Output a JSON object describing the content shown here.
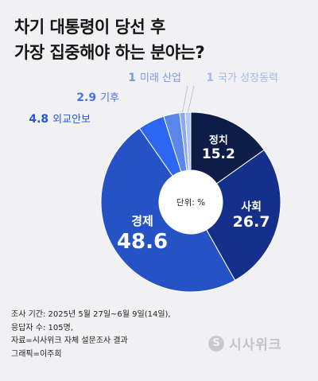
{
  "title_lines": [
    "차기 대통령이 당선 후",
    "가장 집중해야 하는 분야는?"
  ],
  "unit_label": "단위: %",
  "footer_lines": [
    "조사 기간: 2025년 5월 27일~6월 9일(14일),",
    "응답자 수: 105명,",
    "자료=시사위크 자체 설문조사 결과",
    "그래픽=이주희"
  ],
  "brand": {
    "logo_letter": "S",
    "name": "시사위크",
    "logo_color": "#c9c9cd"
  },
  "colors": {
    "background": "#f1f1f3",
    "text": "#151515"
  },
  "chart_data": {
    "type": "pie",
    "subtype": "donut",
    "title": "차기 대통령이 당선 후 가장 집중해야 하는 분야는?",
    "unit": "%",
    "slices": [
      {
        "label": "정치",
        "value": 15.2,
        "color": "#0e1c48"
      },
      {
        "label": "사회",
        "value": 26.7,
        "color": "#14308a"
      },
      {
        "label": "경제",
        "value": 48.6,
        "color": "#2552c4"
      },
      {
        "label": "외교안보",
        "value": 4.8,
        "color": "#2d66f0"
      },
      {
        "label": "기후",
        "value": 2.9,
        "color": "#5a86ec"
      },
      {
        "label": "미래 산업",
        "value": 1,
        "color": "#8fa8e8"
      },
      {
        "label": "국가 성장동력",
        "value": 1,
        "color": "#b3c6ef"
      }
    ],
    "label_colors": {
      "외교안보": "#2356e0",
      "기후": "#4375e6",
      "미래 산업": "#7a98e3",
      "국가 성장동력": "#a2b8ea"
    }
  }
}
